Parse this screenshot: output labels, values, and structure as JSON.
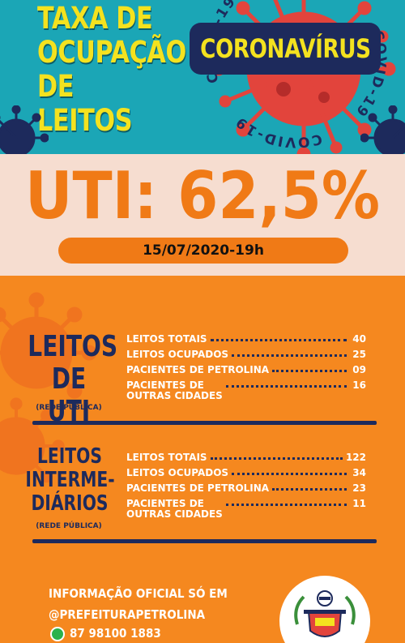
{
  "header": {
    "title_lines": [
      "TAXA DE",
      "OCUPAÇÃO",
      "DE LEITOS"
    ],
    "badge": "CORONAVÍRUS",
    "ring_text": "COVID-19"
  },
  "uti": {
    "headline": "UTI: 62,5%",
    "date": "15/07/2020-19h"
  },
  "uti_section": {
    "title_lines": [
      "LEITOS",
      "DE UTI"
    ],
    "subtitle": "(REDE PÚBLICA)",
    "rows": [
      {
        "label": "LEITOS TOTAIS",
        "value": "40"
      },
      {
        "label": "LEITOS OCUPADOS",
        "value": "25"
      },
      {
        "label": "PACIENTES DE PETROLINA",
        "value": "09"
      },
      {
        "label_lines": [
          "PACIENTES DE",
          "OUTRAS CIDADES"
        ],
        "value": "16"
      }
    ]
  },
  "intermediate_section": {
    "title_lines": [
      "LEITOS",
      "INTERME-",
      "DIÁRIOS"
    ],
    "subtitle": "(REDE PÚBLICA)",
    "rows": [
      {
        "label": "LEITOS TOTAIS",
        "value": "122"
      },
      {
        "label": "LEITOS OCUPADOS",
        "value": "34"
      },
      {
        "label": "PACIENTES DE PETROLINA",
        "value": "23"
      },
      {
        "label_lines": [
          "PACIENTES DE",
          "OUTRAS CIDADES"
        ],
        "value": "11"
      }
    ]
  },
  "footer": {
    "line1": "INFORMAÇÃO OFICIAL SÓ EM",
    "line2": "@PREFEITURAPETROLINA",
    "phone": "87 98100 1883"
  },
  "colors": {
    "teal": "#1ba6b6",
    "yellow": "#f4e21f",
    "navy": "#1d2a5c",
    "orange": "#f5881f",
    "cream": "#f6ddd0",
    "virus_red": "#e2443c"
  }
}
